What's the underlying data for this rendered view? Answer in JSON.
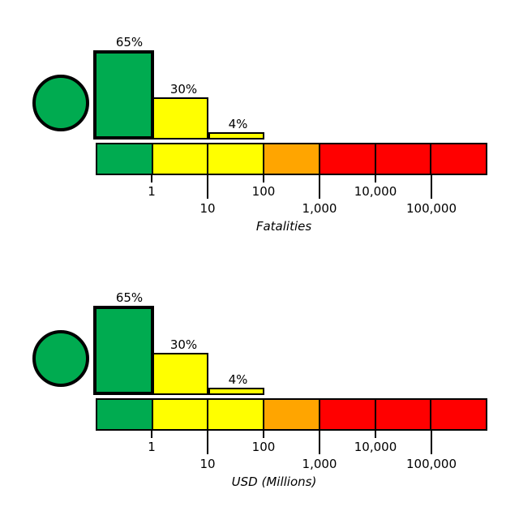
{
  "figure_title": "",
  "colors": {
    "green": "#00AB50",
    "yellow": "#FFFF00",
    "orange": "#FFA500",
    "red": "#FF0000",
    "outline": "#000000",
    "background": "#FFFFFF"
  },
  "chart_data": [
    {
      "type": "bar",
      "title": "",
      "xlabel": "Fatalities",
      "ylabel": "",
      "x_scale": "log",
      "x_range": [
        0.1,
        1000000
      ],
      "x_ticks": [
        "1",
        "10",
        "100",
        "1,000",
        "10,000",
        "100,000"
      ],
      "grid": false,
      "legend": "none",
      "status_icon": {
        "shape": "circle",
        "color": "#00AB50",
        "name": "green-risk-indicator"
      },
      "bars": [
        {
          "label": "65%",
          "value": 65,
          "bin": "0.1-1",
          "color": "#00AB50",
          "emphasized": true
        },
        {
          "label": "30%",
          "value": 30,
          "bin": "1-10",
          "color": "#FFFF00",
          "emphasized": false
        },
        {
          "label": "4%",
          "value": 4,
          "bin": "10-100",
          "color": "#FFFF00",
          "emphasized": false
        }
      ],
      "scale_segments": [
        {
          "bin": "0.1-1",
          "color": "#00AB50"
        },
        {
          "bin": "1-10",
          "color": "#FFFF00"
        },
        {
          "bin": "10-100",
          "color": "#FFFF00"
        },
        {
          "bin": "100-1,000",
          "color": "#FFA500"
        },
        {
          "bin": "1,000-10,000",
          "color": "#FF0000"
        },
        {
          "bin": "10,000-100,000",
          "color": "#FF0000"
        },
        {
          "bin": "100,000-1,000,000",
          "color": "#FF0000"
        }
      ]
    },
    {
      "type": "bar",
      "title": "",
      "xlabel": "USD (Millions)",
      "ylabel": "",
      "x_scale": "log",
      "x_range": [
        0.1,
        1000000
      ],
      "x_ticks": [
        "1",
        "10",
        "100",
        "1,000",
        "10,000",
        "100,000"
      ],
      "grid": false,
      "legend": "none",
      "status_icon": {
        "shape": "circle",
        "color": "#00AB50",
        "name": "green-risk-indicator"
      },
      "bars": [
        {
          "label": "65%",
          "value": 65,
          "bin": "0.1-1",
          "color": "#00AB50",
          "emphasized": true
        },
        {
          "label": "30%",
          "value": 30,
          "bin": "1-10",
          "color": "#FFFF00",
          "emphasized": false
        },
        {
          "label": "4%",
          "value": 4,
          "bin": "10-100",
          "color": "#FFFF00",
          "emphasized": false
        }
      ],
      "scale_segments": [
        {
          "bin": "0.1-1",
          "color": "#00AB50"
        },
        {
          "bin": "1-10",
          "color": "#FFFF00"
        },
        {
          "bin": "10-100",
          "color": "#FFFF00"
        },
        {
          "bin": "100-1,000",
          "color": "#FFA500"
        },
        {
          "bin": "1,000-10,000",
          "color": "#FF0000"
        },
        {
          "bin": "10,000-100,000",
          "color": "#FF0000"
        },
        {
          "bin": "100,000-1,000,000",
          "color": "#FF0000"
        }
      ]
    }
  ]
}
